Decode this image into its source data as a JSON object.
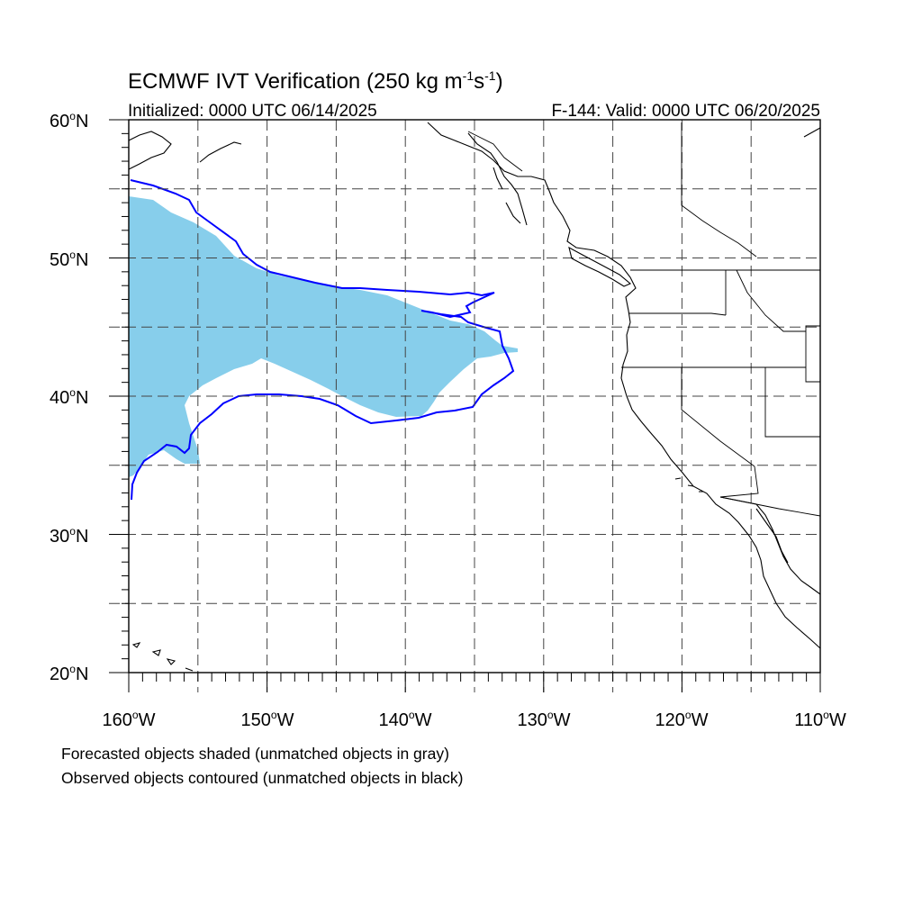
{
  "title": "ECMWF IVT Verification (250 kg m",
  "title_exp1": "-1",
  "title_mid": "s",
  "title_exp2": "-1",
  "title_end": ")",
  "init_label": "Initialized: 0000 UTC 06/14/2025",
  "valid_label": "F-144: Valid: 0000 UTC 06/20/2025",
  "lat_labels": [
    {
      "deg": "60",
      "hemi": "N"
    },
    {
      "deg": "50",
      "hemi": "N"
    },
    {
      "deg": "40",
      "hemi": "N"
    },
    {
      "deg": "30",
      "hemi": "N"
    },
    {
      "deg": "20",
      "hemi": "N"
    }
  ],
  "lon_labels": [
    {
      "deg": "160",
      "hemi": "W"
    },
    {
      "deg": "150",
      "hemi": "W"
    },
    {
      "deg": "140",
      "hemi": "W"
    },
    {
      "deg": "130",
      "hemi": "W"
    },
    {
      "deg": "120",
      "hemi": "W"
    },
    {
      "deg": "110",
      "hemi": "W"
    }
  ],
  "note_forecast": "Forecasted objects shaded (unmatched objects in gray)",
  "note_observed": "Observed objects contoured (unmatched objects in black)",
  "colors": {
    "forecast_fill": "#87CEEB",
    "observed_contour": "#0000FF",
    "gridline": "#444444",
    "coastline": "#000000"
  }
}
